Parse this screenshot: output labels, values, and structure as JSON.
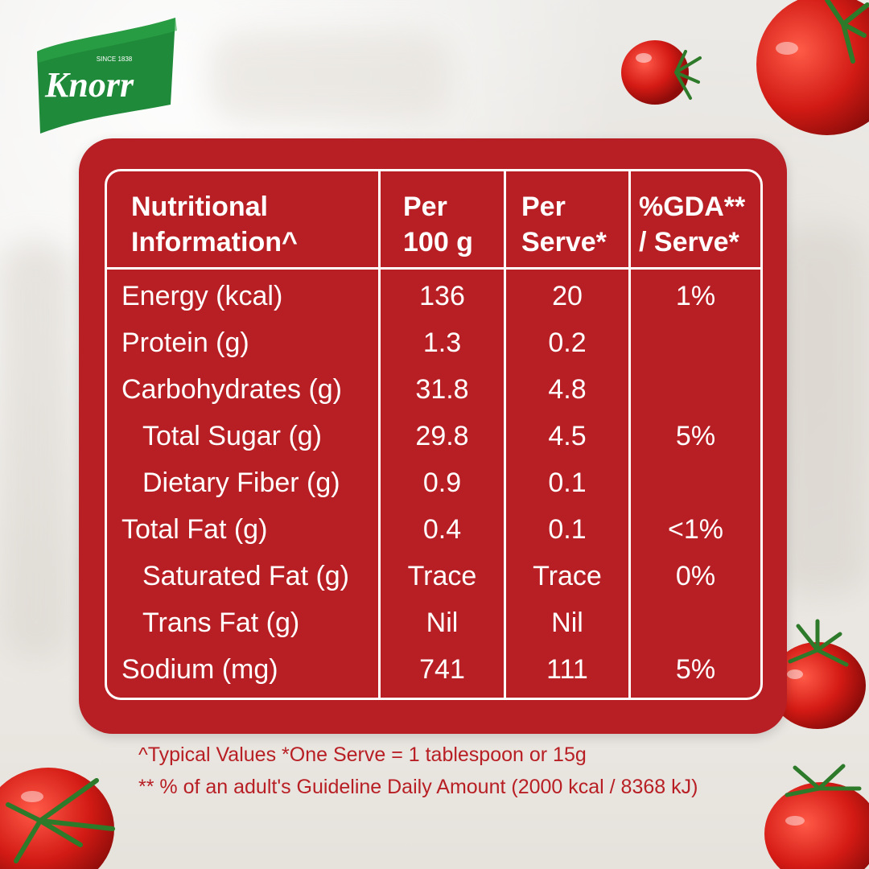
{
  "brand": {
    "name": "Knorr",
    "since": "SINCE 1838",
    "colors": {
      "leaf": "#1f8a3a",
      "text": "#ffffff"
    }
  },
  "colors": {
    "card": "#b81f24",
    "text": "#ffffff",
    "footnote": "#b81f24"
  },
  "table": {
    "headers": {
      "name": [
        "Nutritional",
        "Information^"
      ],
      "per100": [
        "Per",
        "100 g"
      ],
      "perServe": [
        "Per",
        "Serve*"
      ],
      "gda": [
        "%GDA**",
        "/ Serve*"
      ]
    },
    "rows": [
      {
        "name": "Energy (kcal)",
        "per100": "136",
        "perServe": "20",
        "gda": "1%"
      },
      {
        "name": "Protein (g)",
        "per100": "1.3",
        "perServe": "0.2",
        "gda": ""
      },
      {
        "name": "Carbohydrates (g)",
        "per100": "31.8",
        "perServe": "4.8",
        "gda": ""
      },
      {
        "name": "Total Sugar (g)",
        "per100": "29.8",
        "perServe": "4.5",
        "gda": "5%"
      },
      {
        "name": "Dietary Fiber (g)",
        "per100": "0.9",
        "perServe": "0.1",
        "gda": ""
      },
      {
        "name": "Total Fat (g)",
        "per100": "0.4",
        "perServe": "0.1",
        "gda": "<1%"
      },
      {
        "name": "Saturated Fat (g)",
        "per100": "Trace",
        "perServe": "Trace",
        "gda": "0%"
      },
      {
        "name": "Trans Fat (g)",
        "per100": "Nil",
        "perServe": "Nil",
        "gda": ""
      },
      {
        "name": "Sodium (mg)",
        "per100": "741",
        "perServe": "111",
        "gda": "5%"
      }
    ]
  },
  "footnotes": {
    "line1": "^Typical Values  *One Serve = 1 tablespoon or 15g",
    "line2": "** % of an adult's Guideline Daily Amount (2000 kcal / 8368 kJ)"
  }
}
